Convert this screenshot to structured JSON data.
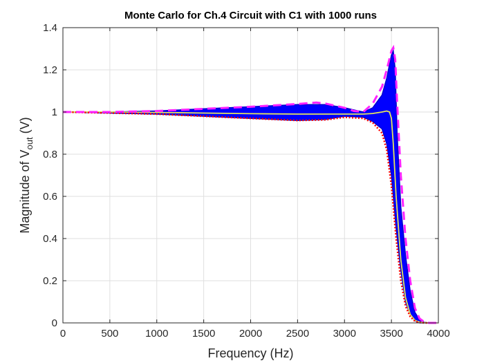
{
  "chart_data": {
    "type": "line",
    "title": "Monte Carlo for Ch.4 Circuit with C1 with 1000 runs",
    "xlabel": "Frequency (Hz)",
    "ylabel": {
      "prefix": "Magnitude of V",
      "subscript": "out",
      "suffix": " (V)"
    },
    "xlim": [
      0,
      4000
    ],
    "ylim": [
      0,
      1.4
    ],
    "xticks": [
      0,
      500,
      1000,
      1500,
      2000,
      2500,
      3000,
      3500,
      4000
    ],
    "yticks": [
      0,
      0.2,
      0.4,
      0.6,
      0.8,
      1,
      1.2,
      1.4
    ],
    "xtick_labels": [
      "0",
      "500",
      "1000",
      "1500",
      "2000",
      "2500",
      "3000",
      "3500",
      "4000"
    ],
    "ytick_labels": [
      "0",
      "0.2",
      "0.4",
      "0.6",
      "0.8",
      "1",
      "1.2",
      "1.4"
    ],
    "grid": true,
    "colors": {
      "band": "#0000ff",
      "nominal": "#e6e65a",
      "upper": "#ff22ff",
      "lower": "#ff0000",
      "band_edge": "#0000cc"
    },
    "series": [
      {
        "style": "band-max",
        "x": [
          0,
          500,
          1000,
          1500,
          2000,
          2500,
          2800,
          3000,
          3200,
          3300,
          3400,
          3450,
          3500,
          3520,
          3540,
          3560,
          3600,
          3650,
          3700,
          3750,
          3800,
          3850,
          3900
        ],
        "y": [
          1.0,
          1.0,
          1.005,
          1.015,
          1.025,
          1.035,
          1.035,
          1.02,
          1.0,
          1.02,
          1.08,
          1.16,
          1.27,
          1.29,
          1.2,
          0.9,
          0.55,
          0.32,
          0.15,
          0.05,
          0.015,
          0.003,
          0.0
        ]
      },
      {
        "style": "band-min",
        "x": [
          0,
          500,
          1000,
          1500,
          2000,
          2500,
          2800,
          3000,
          3200,
          3300,
          3400,
          3450,
          3500,
          3550,
          3600,
          3650,
          3700,
          3750,
          3800,
          3850,
          3900
        ],
        "y": [
          1.0,
          0.995,
          0.99,
          0.98,
          0.97,
          0.96,
          0.965,
          0.98,
          0.975,
          0.955,
          0.92,
          0.85,
          0.7,
          0.45,
          0.25,
          0.1,
          0.04,
          0.01,
          0.0,
          0.0,
          0.0
        ]
      },
      {
        "style": "nominal",
        "x": [
          0,
          500,
          1000,
          1500,
          2000,
          2500,
          2800,
          3000,
          3200,
          3300,
          3400,
          3450,
          3480,
          3500,
          3520,
          3550,
          3600,
          3650,
          3700,
          3750,
          3800,
          3850,
          3900
        ],
        "y": [
          1.0,
          1.0,
          0.998,
          0.995,
          0.992,
          0.99,
          0.99,
          0.99,
          0.99,
          0.993,
          1.0,
          1.005,
          1.0,
          0.97,
          0.85,
          0.6,
          0.3,
          0.12,
          0.04,
          0.012,
          0.004,
          0.001,
          0.0
        ]
      },
      {
        "style": "upper-dashed",
        "x": [
          0,
          500,
          1000,
          1500,
          2000,
          2500,
          2700,
          2800,
          3000,
          3100,
          3200,
          3300,
          3400,
          3450,
          3500,
          3520,
          3540,
          3560,
          3600,
          3650,
          3700,
          3750,
          3800,
          3850,
          3900,
          4000
        ],
        "y": [
          1.0,
          1.0,
          1.005,
          1.015,
          1.025,
          1.038,
          1.045,
          1.04,
          1.02,
          1.005,
          1.0,
          1.04,
          1.12,
          1.2,
          1.29,
          1.305,
          1.25,
          1.05,
          0.7,
          0.4,
          0.2,
          0.07,
          0.02,
          0.005,
          0.0,
          0.0
        ]
      },
      {
        "style": "lower-dotted",
        "x": [
          0,
          500,
          1000,
          1500,
          2000,
          2500,
          2800,
          3000,
          3200,
          3300,
          3400,
          3450,
          3500,
          3550,
          3600,
          3650,
          3700,
          3750,
          3800,
          3850,
          3900,
          4000
        ],
        "y": [
          1.0,
          0.995,
          0.99,
          0.98,
          0.97,
          0.96,
          0.963,
          0.975,
          0.97,
          0.95,
          0.9,
          0.82,
          0.65,
          0.4,
          0.2,
          0.08,
          0.03,
          0.008,
          0.002,
          0.0,
          0.0,
          0.0
        ]
      }
    ]
  }
}
